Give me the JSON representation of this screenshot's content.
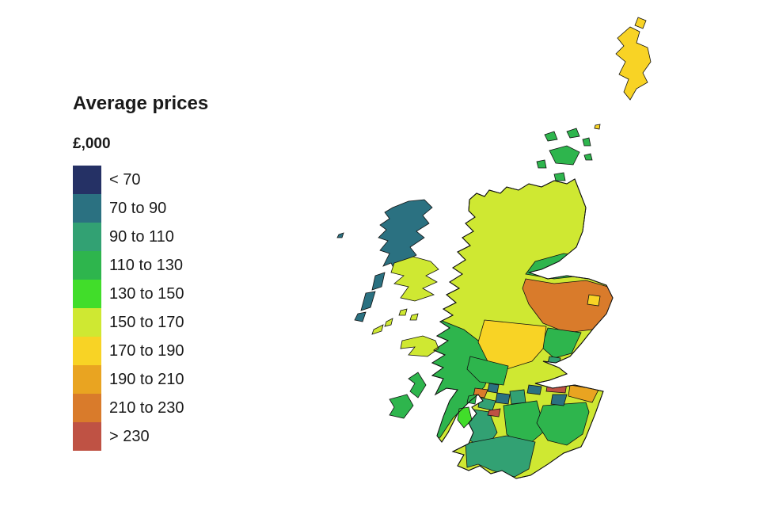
{
  "legend": {
    "title": "Average prices",
    "subtitle": "£,000",
    "bins": [
      {
        "label": "< 70",
        "color": "#253165"
      },
      {
        "label": "70 to 90",
        "color": "#2b7181"
      },
      {
        "label": "90 to 110",
        "color": "#32a173"
      },
      {
        "label": "110 to 130",
        "color": "#2eb54d"
      },
      {
        "label": "130 to 150",
        "color": "#41dd2a"
      },
      {
        "label": "150 to 170",
        "color": "#cfe832"
      },
      {
        "label": "170 to 190",
        "color": "#f8d325"
      },
      {
        "label": "190 to 210",
        "color": "#e9a421"
      },
      {
        "label": "210 to 230",
        "color": "#d97b2b"
      },
      {
        "label": "> 230",
        "color": "#bf5244"
      }
    ]
  },
  "map": {
    "title": "Scotland choropleth of average house prices",
    "regions": [
      {
        "id": "mainland",
        "name": "Highland and mainland base",
        "bin": "150 to 170",
        "color": "#cfe832",
        "layer": "base"
      },
      {
        "id": "argyll",
        "name": "Argyll and Bute",
        "bin": "110 to 130",
        "color": "#2eb54d",
        "layer": "patch"
      },
      {
        "id": "moray",
        "name": "Moray",
        "bin": "110 to 130",
        "color": "#2eb54d",
        "layer": "patch"
      },
      {
        "id": "aberdeenshire",
        "name": "Aberdeenshire",
        "bin": "210 to 230",
        "color": "#d97b2b",
        "layer": "patch"
      },
      {
        "id": "aberdeen_city",
        "name": "Aberdeen City",
        "bin": "170 to 190",
        "color": "#f8d325",
        "layer": "patch"
      },
      {
        "id": "angus",
        "name": "Angus",
        "bin": "110 to 130",
        "color": "#2eb54d",
        "layer": "patch"
      },
      {
        "id": "dundee",
        "name": "Dundee City",
        "bin": "90 to 110",
        "color": "#32a173",
        "layer": "patch"
      },
      {
        "id": "perth_kinross",
        "name": "Perth and Kinross",
        "bin": "170 to 190",
        "color": "#f8d325",
        "layer": "patch"
      },
      {
        "id": "stirling",
        "name": "Stirling",
        "bin": "110 to 130",
        "color": "#2eb54d",
        "layer": "patch"
      },
      {
        "id": "south_lanarkshire",
        "name": "South Lanarkshire",
        "bin": "110 to 130",
        "color": "#2eb54d",
        "layer": "patch"
      },
      {
        "id": "ayrshire",
        "name": "Ayrshire",
        "bin": "90 to 110",
        "color": "#32a173",
        "layer": "patch"
      },
      {
        "id": "dumfries_galloway",
        "name": "Dumfries and Galloway",
        "bin": "90 to 110",
        "color": "#32a173",
        "layer": "patch"
      },
      {
        "id": "borders",
        "name": "Scottish Borders",
        "bin": "110 to 130",
        "color": "#2eb54d",
        "layer": "patch"
      },
      {
        "id": "west_lothian",
        "name": "West Lothian",
        "bin": "70 to 90",
        "color": "#2b7181",
        "layer": "patch"
      },
      {
        "id": "east_lothian",
        "name": "East Lothian",
        "bin": "190 to 210",
        "color": "#e9a421",
        "layer": "patch"
      },
      {
        "id": "edinburgh",
        "name": "City of Edinburgh",
        "bin": "> 230",
        "color": "#bf5244",
        "layer": "patch"
      },
      {
        "id": "midlothian",
        "name": "Midlothian",
        "bin": "70 to 90",
        "color": "#2b7181",
        "layer": "patch"
      },
      {
        "id": "north_lanarkshire",
        "name": "North Lanarkshire",
        "bin": "90 to 110",
        "color": "#32a173",
        "layer": "patch"
      },
      {
        "id": "inverclyde",
        "name": "Inverclyde",
        "bin": "210 to 230",
        "color": "#d97b2b",
        "layer": "patch"
      },
      {
        "id": "west_dunbartonshire",
        "name": "West Dunbartonshire",
        "bin": "70 to 90",
        "color": "#2b7181",
        "layer": "patch"
      },
      {
        "id": "glasgow",
        "name": "Glasgow City",
        "bin": "70 to 90",
        "color": "#2b7181",
        "layer": "patch"
      },
      {
        "id": "renfrewshire",
        "name": "Renfrewshire",
        "bin": "90 to 110",
        "color": "#32a173",
        "layer": "patch"
      },
      {
        "id": "east_renfrewshire",
        "name": "East Renfrewshire",
        "bin": "> 230",
        "color": "#bf5244",
        "layer": "patch"
      },
      {
        "id": "shetland",
        "name": "Shetland Islands",
        "bin": "170 to 190",
        "color": "#f8d325",
        "layer": "island"
      },
      {
        "id": "shetland_north",
        "name": "Shetland north isle",
        "bin": "170 to 190",
        "color": "#f8d325",
        "layer": "island"
      },
      {
        "id": "fair_isle",
        "name": "Fair Isle",
        "bin": "170 to 190",
        "color": "#f8d325",
        "layer": "island"
      },
      {
        "id": "orkney",
        "name": "Orkney Islands",
        "bin": "110 to 130",
        "color": "#2eb54d",
        "layer": "island"
      },
      {
        "id": "outer_hebrides",
        "name": "Na h-Eileanan Siar",
        "bin": "70 to 90",
        "color": "#2b7181",
        "layer": "island"
      },
      {
        "id": "st_kilda",
        "name": "St Kilda",
        "bin": "70 to 90",
        "color": "#2b7181",
        "layer": "island"
      },
      {
        "id": "skye",
        "name": "Isle of Skye",
        "bin": "150 to 170",
        "color": "#cfe832",
        "layer": "island"
      },
      {
        "id": "small_isles",
        "name": "Small Isles",
        "bin": "150 to 170",
        "color": "#cfe832",
        "layer": "island"
      },
      {
        "id": "tiree_coll",
        "name": "Tiree and Coll",
        "bin": "150 to 170",
        "color": "#cfe832",
        "layer": "island"
      },
      {
        "id": "mull",
        "name": "Isle of Mull",
        "bin": "150 to 170",
        "color": "#cfe832",
        "layer": "island"
      },
      {
        "id": "jura",
        "name": "Jura",
        "bin": "110 to 130",
        "color": "#2eb54d",
        "layer": "island"
      },
      {
        "id": "islay",
        "name": "Islay",
        "bin": "110 to 130",
        "color": "#2eb54d",
        "layer": "island"
      },
      {
        "id": "bute",
        "name": "Isle of Bute",
        "bin": "110 to 130",
        "color": "#2eb54d",
        "layer": "island"
      },
      {
        "id": "arran",
        "name": "Isle of Arran",
        "bin": "130 to 150",
        "color": "#41dd2a",
        "layer": "island"
      }
    ]
  }
}
